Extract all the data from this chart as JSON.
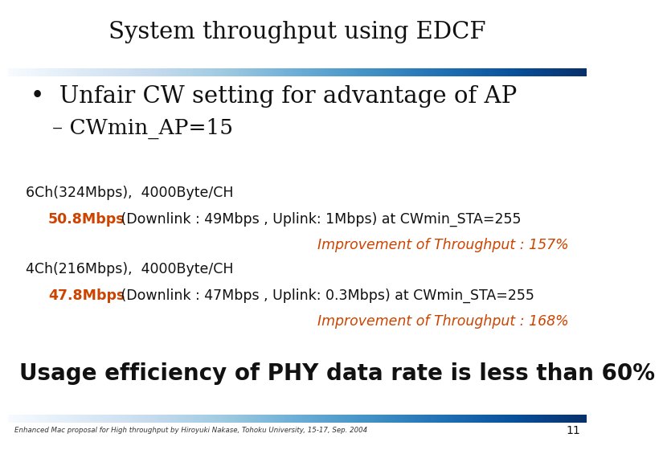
{
  "title": "System throughput using EDCF",
  "bg_color": "#ffffff",
  "bullet1": "•  Unfair CW setting for advantage of AP",
  "sub_bullet1": "– CWmin_AP=15",
  "line1_label": "6Ch(324Mbps),  4000Byte/CH",
  "line2_red": "50.8Mbps",
  "line2_black": " (Downlink : 49Mbps , Uplink: 1Mbps) at CWmin_STA=255",
  "line3": "Improvement of Throughput : 157%",
  "line4_label": "4Ch(216Mbps),  4000Byte/CH",
  "line5_red": "47.8Mbps",
  "line5_black": " (Downlink : 47Mbps , Uplink: 0.3Mbps) at CWmin_STA=255",
  "line6": "Improvement of Throughput : 168%",
  "footer_text": "Usage efficiency of PHY data rate is less than 60%",
  "footnote": "Enhanced Mac proposal for High throughput by Hiroyuki Nakase, Tohoku University, 15-17, Sep. 2004",
  "page_num": "11",
  "orange_color": "#cc4400",
  "black_color": "#111111",
  "navy_color": "#222244"
}
